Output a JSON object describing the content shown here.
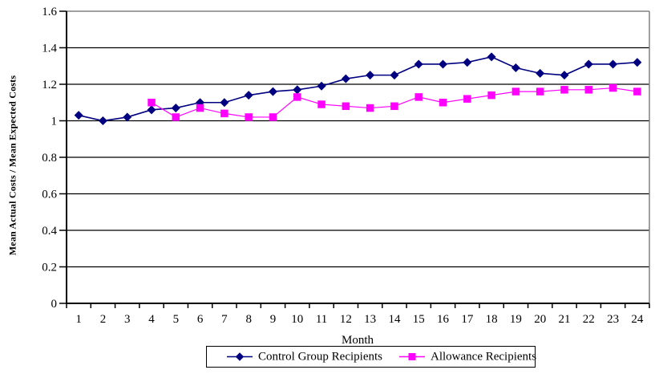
{
  "chart_data": {
    "type": "line",
    "title": "",
    "xlabel": "Month",
    "ylabel": "Mean Actual Costs / Mean Expected Costs",
    "categories": [
      "1",
      "2",
      "3",
      "4",
      "5",
      "6",
      "7",
      "8",
      "9",
      "10",
      "11",
      "12",
      "13",
      "14",
      "15",
      "16",
      "17",
      "18",
      "19",
      "20",
      "21",
      "22",
      "23",
      "24"
    ],
    "ylim": [
      0,
      1.6
    ],
    "ytick_values": [
      0,
      0.2,
      0.4,
      0.6,
      0.8,
      1.0,
      1.2,
      1.4,
      1.6
    ],
    "ytick_labels": [
      "0",
      "0.2",
      "0.4",
      "0.6",
      "0.8",
      "1",
      "1.2",
      "1.4",
      "1.6"
    ],
    "grid": true,
    "legend_position": "bottom-center",
    "series": [
      {
        "name": "Control Group Recipients",
        "color": "#000080",
        "marker": "diamond",
        "values": [
          1.03,
          1.0,
          1.02,
          1.06,
          1.07,
          1.1,
          1.1,
          1.14,
          1.16,
          1.17,
          1.19,
          1.23,
          1.25,
          1.25,
          1.31,
          1.31,
          1.32,
          1.35,
          1.29,
          1.26,
          1.25,
          1.31,
          1.31,
          1.32
        ]
      },
      {
        "name": "Allowance Recipients",
        "color": "#FF00FF",
        "marker": "square",
        "values": [
          null,
          null,
          null,
          1.1,
          1.02,
          1.07,
          1.04,
          1.02,
          1.02,
          1.13,
          1.09,
          1.08,
          1.07,
          1.08,
          1.13,
          1.1,
          1.12,
          1.14,
          1.16,
          1.16,
          1.17,
          1.17,
          1.18,
          1.16
        ]
      }
    ]
  },
  "colors": {
    "background": "#FFFFFF",
    "text": "#000000",
    "gridline": "#000000",
    "axis": "#000000",
    "plot_border": "#808080",
    "series_control": "#000080",
    "series_allowance": "#FF00FF"
  }
}
